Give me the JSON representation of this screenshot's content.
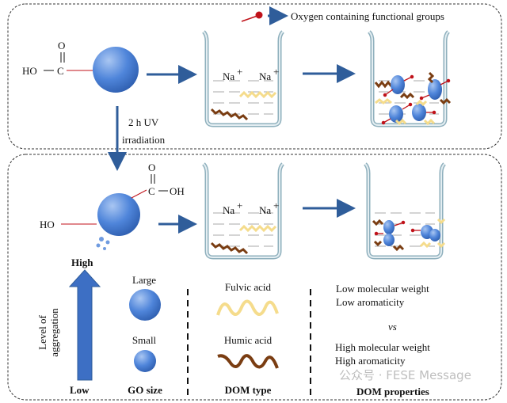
{
  "legend": {
    "label": "Oxygen containing functional groups",
    "icon": "oxygen-group-red-dot"
  },
  "top": {
    "cooh_o": "O",
    "cooh_ho": "HO",
    "cooh_c": "C",
    "ion1": "Na",
    "ion2": "Na",
    "ion_charge": "+"
  },
  "process": {
    "line1": "2 h UV",
    "line2": "irradiation"
  },
  "bottom": {
    "ho": "HO",
    "c": "C",
    "oh": "OH",
    "o": "O",
    "ion1": "Na",
    "ion2": "Na",
    "ion_charge": "+"
  },
  "summary": {
    "aggregation_high": "High",
    "aggregation_low": "Low",
    "aggregation_label_1": "Level of",
    "aggregation_label_2": "aggregation",
    "go_large": "Large",
    "go_small": "Small",
    "go_size": "GO size",
    "fulvic": "Fulvic acid",
    "humic": "Humic acid",
    "dom_type": "DOM type",
    "low_mw": "Low molecular weight",
    "low_arom": "Low aromaticity",
    "vs": "vs",
    "high_mw": "High molecular weight",
    "high_arom": "High aromaticity",
    "dom_properties": "DOM properties"
  },
  "watermark": "公众号 · FESE Message",
  "colors": {
    "sphere": "#4a7fd6",
    "arrow": "#2f5d9a",
    "fulvic": "#f5dc8c",
    "humic": "#7a3d12",
    "beaker": "#8fb0bd",
    "oxygen": "#c0121a"
  }
}
